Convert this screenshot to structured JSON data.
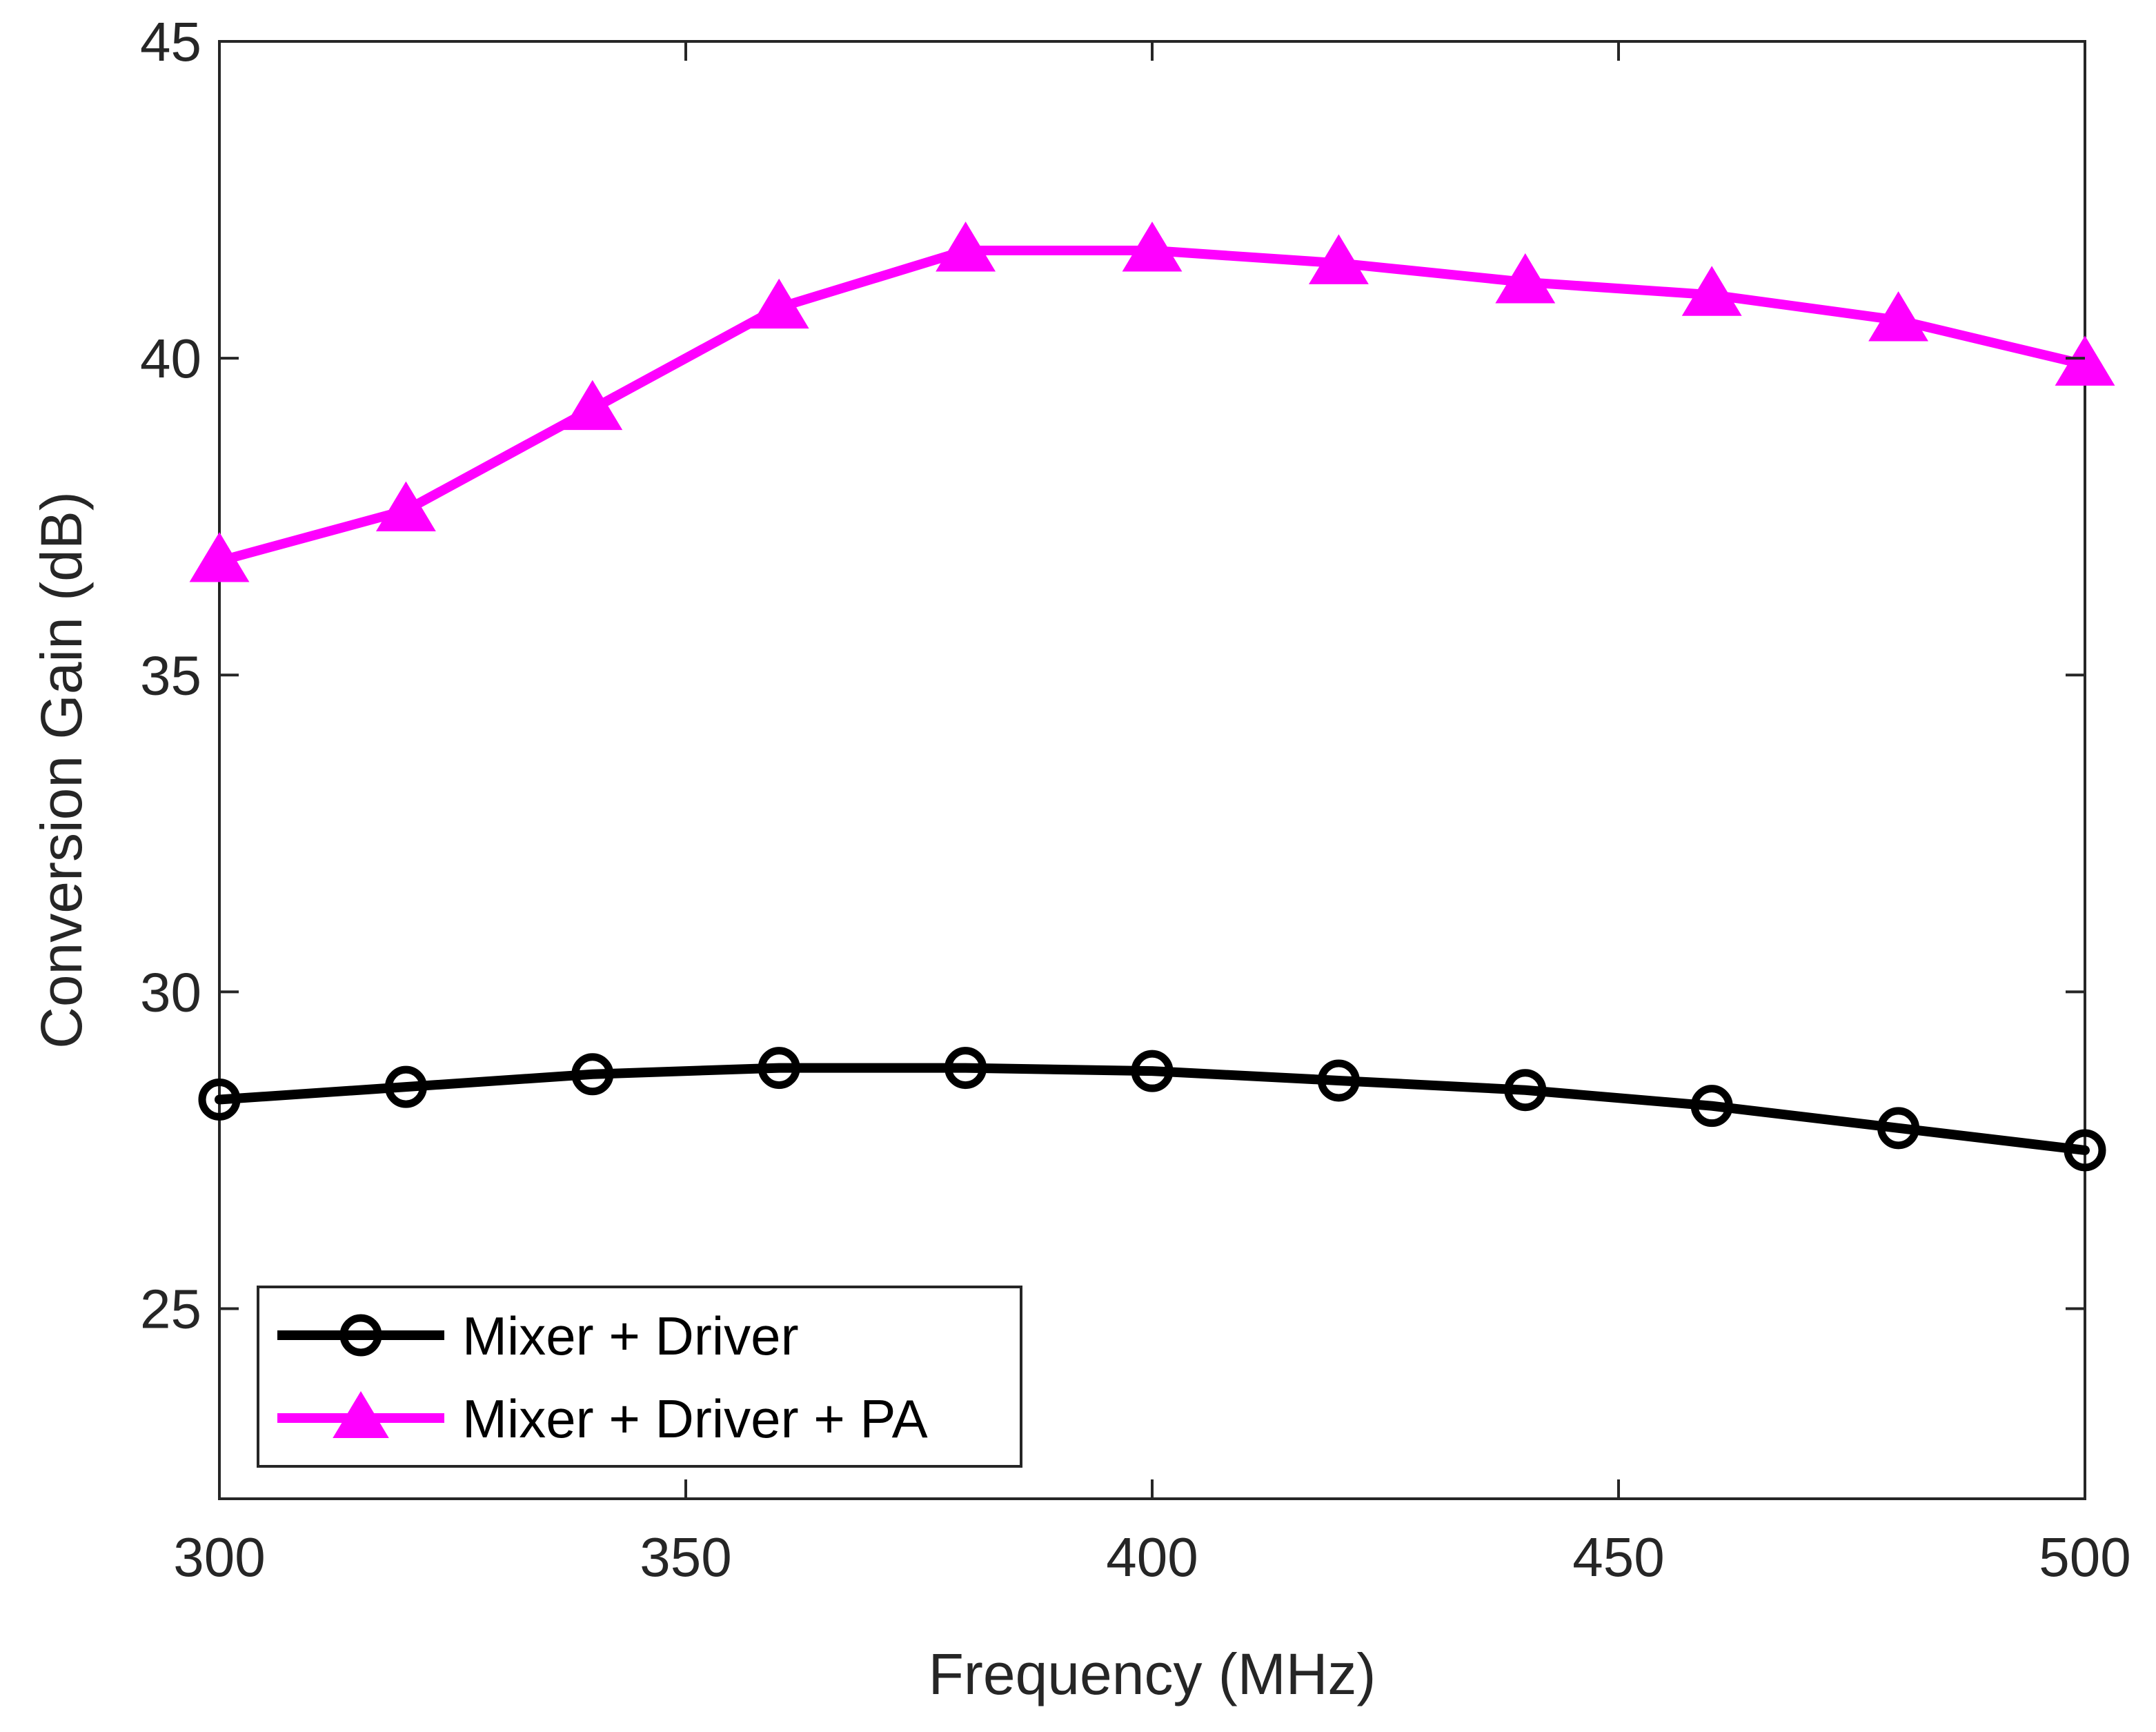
{
  "chart_data": {
    "type": "line",
    "title": "",
    "xlabel": "Frequency (MHz)",
    "ylabel": "Conversion Gain (dB)",
    "xlim": [
      300,
      500
    ],
    "ylim": [
      22,
      45
    ],
    "xticks": [
      300,
      350,
      400,
      450,
      500
    ],
    "yticks": [
      25,
      30,
      35,
      40,
      45
    ],
    "grid": false,
    "legend_position": "bottom-left",
    "x": [
      300,
      320,
      340,
      360,
      380,
      400,
      420,
      440,
      460,
      480,
      500
    ],
    "series": [
      {
        "name": "Mixer + Driver",
        "marker": "circle",
        "color": "#000000",
        "values": [
          28.3,
          28.5,
          28.7,
          28.8,
          28.8,
          28.75,
          28.6,
          28.45,
          28.2,
          27.85,
          27.5
        ]
      },
      {
        "name": "Mixer + Driver + PA",
        "marker": "triangle",
        "color": "#ff00ff",
        "values": [
          36.8,
          37.6,
          39.2,
          40.8,
          41.7,
          41.7,
          41.5,
          41.2,
          41.0,
          40.6,
          39.9
        ]
      }
    ]
  }
}
